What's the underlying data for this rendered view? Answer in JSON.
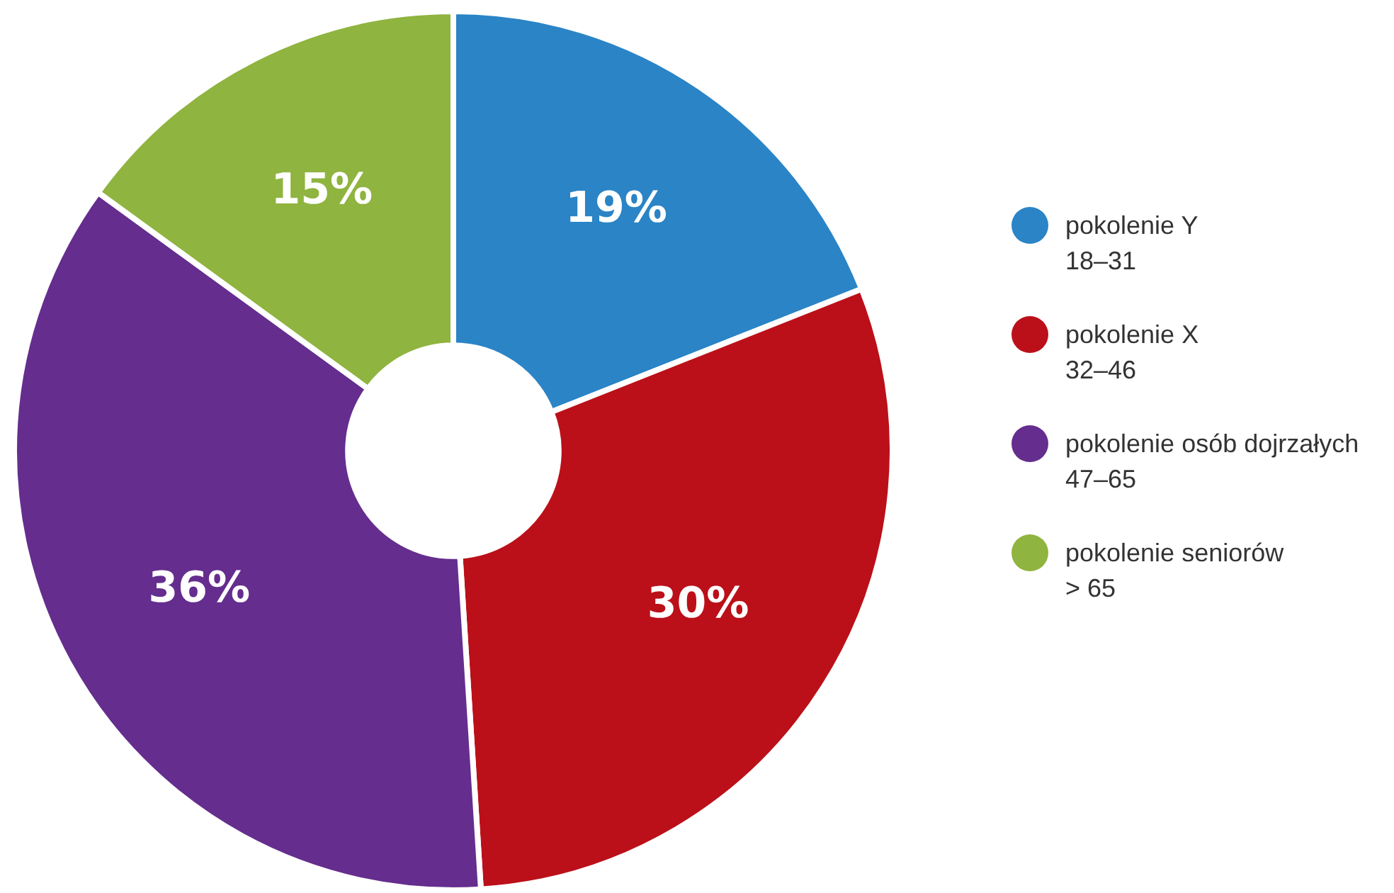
{
  "chart_data": {
    "type": "donut",
    "categories": [
      "pokolenie Y\n18–31",
      "pokolenie X\n32–46",
      "pokolenie osób dojrzałych\n47–65",
      "pokolenie seniorów\n> 65"
    ],
    "values": [
      19,
      30,
      36,
      15
    ],
    "value_labels": [
      "19%",
      "30%",
      "36%",
      "15%"
    ],
    "colors": [
      "#2a84c6",
      "#bb1019",
      "#652d8e",
      "#8fb43f"
    ],
    "legend": "right"
  }
}
